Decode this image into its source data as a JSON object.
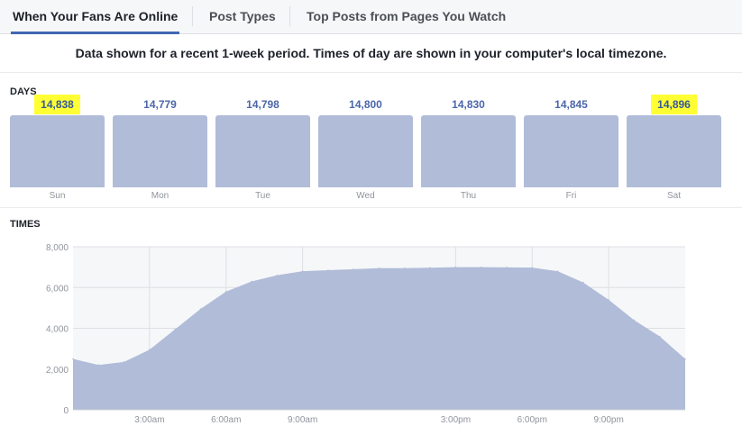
{
  "tabs": [
    {
      "label": "When Your Fans Are Online",
      "active": true
    },
    {
      "label": "Post Types",
      "active": false
    },
    {
      "label": "Top Posts from Pages You Watch",
      "active": false
    }
  ],
  "notice": "Data shown for a recent 1-week period. Times of day are shown in your computer's local timezone.",
  "days_section": {
    "label": "DAYS",
    "days": [
      {
        "name": "Sun",
        "value": "14,838",
        "highlighted": true
      },
      {
        "name": "Mon",
        "value": "14,779",
        "highlighted": false
      },
      {
        "name": "Tue",
        "value": "14,798",
        "highlighted": false
      },
      {
        "name": "Wed",
        "value": "14,800",
        "highlighted": false
      },
      {
        "name": "Thu",
        "value": "14,830",
        "highlighted": false
      },
      {
        "name": "Fri",
        "value": "14,845",
        "highlighted": false
      },
      {
        "name": "Sat",
        "value": "14,896",
        "highlighted": true
      }
    ]
  },
  "times_section": {
    "label": "TIMES"
  },
  "colors": {
    "bar_fill": "#b0bcd8",
    "area_fill": "#b0bcd8",
    "highlight": "#ffff33",
    "accent": "#4267b2"
  },
  "chart_data": [
    {
      "type": "bar",
      "categories": [
        "Sun",
        "Mon",
        "Tue",
        "Wed",
        "Thu",
        "Fri",
        "Sat"
      ],
      "values": [
        14838,
        14779,
        14798,
        14800,
        14830,
        14845,
        14896
      ]
    },
    {
      "type": "area",
      "x": [
        0,
        1,
        2,
        3,
        4,
        5,
        6,
        7,
        8,
        9,
        10,
        11,
        12,
        13,
        14,
        15,
        16,
        17,
        18,
        19,
        20,
        21,
        22,
        23,
        24
      ],
      "values": [
        2500,
        2200,
        2350,
        2950,
        3950,
        4950,
        5800,
        6300,
        6600,
        6800,
        6850,
        6900,
        6950,
        6950,
        6970,
        7000,
        7000,
        6990,
        6980,
        6800,
        6250,
        5400,
        4400,
        3600,
        2500
      ],
      "x_ticks": [
        {
          "x": 3,
          "label": "3:00am"
        },
        {
          "x": 6,
          "label": "6:00am"
        },
        {
          "x": 9,
          "label": "9:00am"
        },
        {
          "x": 15,
          "label": "3:00pm"
        },
        {
          "x": 18,
          "label": "6:00pm"
        },
        {
          "x": 21,
          "label": "9:00pm"
        }
      ],
      "y_ticks": [
        {
          "y": 0,
          "label": "0"
        },
        {
          "y": 2000,
          "label": "2,000"
        },
        {
          "y": 4000,
          "label": "4,000"
        },
        {
          "y": 6000,
          "label": "6,000"
        },
        {
          "y": 8000,
          "label": "8,000"
        }
      ],
      "xlim": [
        0,
        24
      ],
      "ylim": [
        0,
        8000
      ],
      "grid": true
    }
  ]
}
